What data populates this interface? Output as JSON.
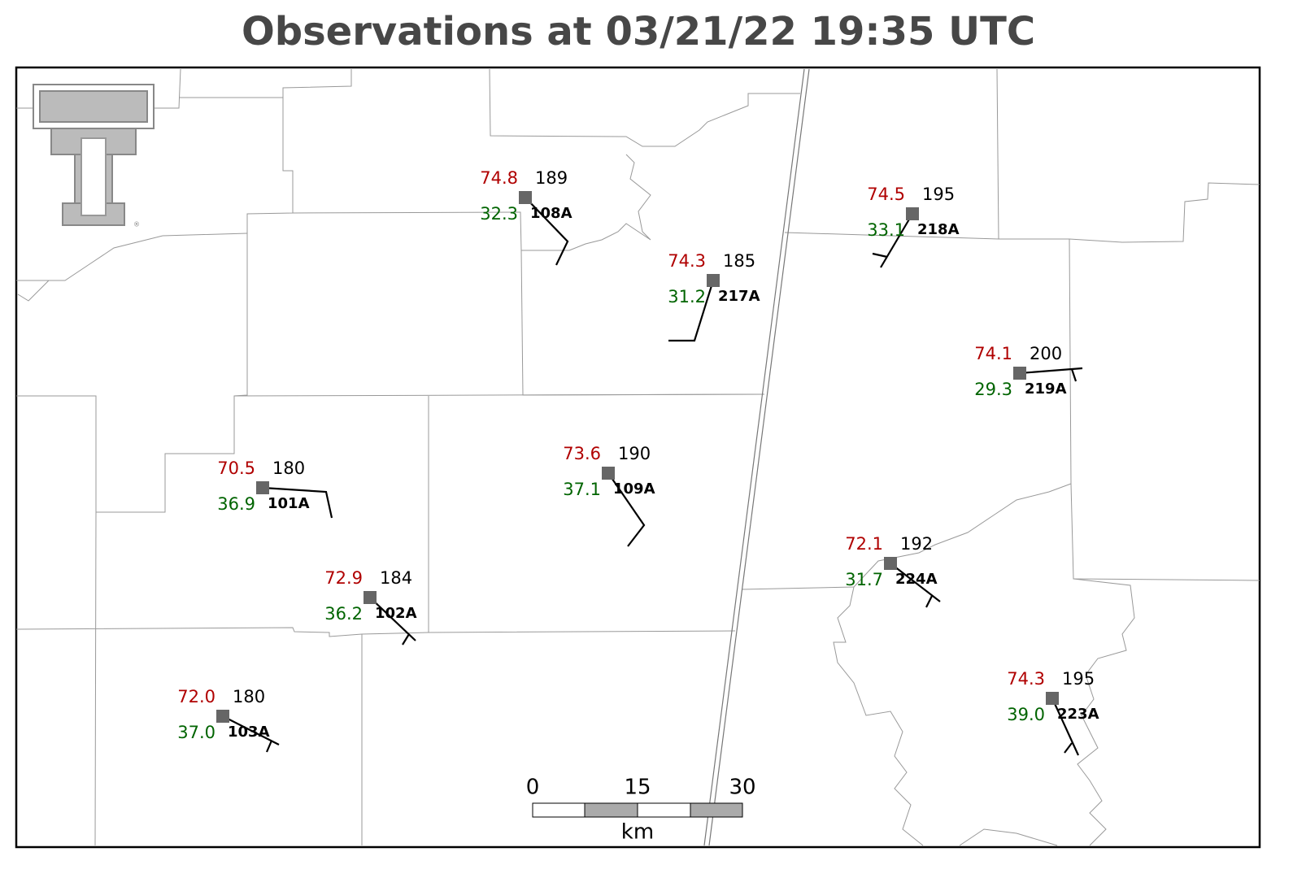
{
  "header": {
    "title": "Observations at 03/21/22 19:35 UTC"
  },
  "stations": [
    {
      "id": "108A",
      "temperature": "74.8",
      "dewpoint": "32.3",
      "pressure": "189"
    },
    {
      "id": "217A",
      "temperature": "74.3",
      "dewpoint": "31.2",
      "pressure": "185"
    },
    {
      "id": "218A",
      "temperature": "74.5",
      "dewpoint": "33.1",
      "pressure": "195"
    },
    {
      "id": "219A",
      "temperature": "74.1",
      "dewpoint": "29.3",
      "pressure": "200"
    },
    {
      "id": "101A",
      "temperature": "70.5",
      "dewpoint": "36.9",
      "pressure": "180"
    },
    {
      "id": "109A",
      "temperature": "73.6",
      "dewpoint": "37.1",
      "pressure": "190"
    },
    {
      "id": "102A",
      "temperature": "72.9",
      "dewpoint": "36.2",
      "pressure": "184"
    },
    {
      "id": "103A",
      "temperature": "72.0",
      "dewpoint": "37.0",
      "pressure": "180"
    },
    {
      "id": "224A",
      "temperature": "72.1",
      "dewpoint": "31.7",
      "pressure": "192"
    },
    {
      "id": "223A",
      "temperature": "74.3",
      "dewpoint": "39.0",
      "pressure": "195"
    }
  ],
  "scale_bar": {
    "labels": [
      "0",
      "15",
      "30"
    ],
    "unit": "km"
  }
}
